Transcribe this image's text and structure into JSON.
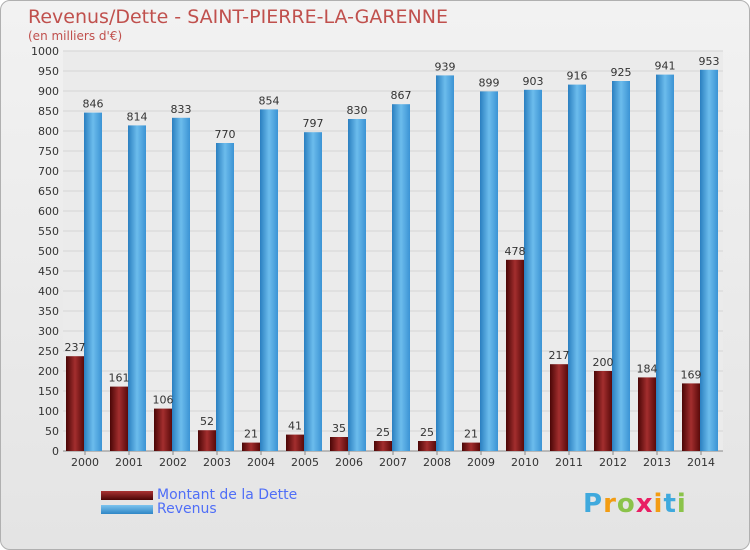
{
  "header": {
    "title": "Revenus/Dette - SAINT-PIERRE-LA-GARENNE",
    "subtitle": "(en milliers d'€)"
  },
  "chart_data": {
    "type": "bar",
    "title": "Revenus/Dette - SAINT-PIERRE-LA-GARENNE",
    "ylabel": "(en milliers d'€)",
    "xlabel": "",
    "ylim": [
      0,
      1000
    ],
    "ytick_step": 50,
    "grid": true,
    "legend_position": "bottom-left",
    "categories": [
      "2000",
      "2001",
      "2002",
      "2003",
      "2004",
      "2005",
      "2006",
      "2007",
      "2008",
      "2009",
      "2010",
      "2011",
      "2012",
      "2013",
      "2014"
    ],
    "series": [
      {
        "name": "Montant de la Dette",
        "color": "#7a1212",
        "values": [
          237,
          161,
          106,
          52,
          21,
          41,
          35,
          25,
          25,
          21,
          478,
          217,
          200,
          184,
          169
        ]
      },
      {
        "name": "Revenus",
        "color": "#4aa3df",
        "values": [
          846,
          814,
          833,
          770,
          854,
          797,
          830,
          867,
          939,
          899,
          903,
          916,
          925,
          941,
          953
        ]
      }
    ]
  },
  "legend": [
    {
      "label": "Montant de la Dette",
      "color": "#6b1010"
    },
    {
      "label": "Revenus",
      "color": "#4aa3df"
    }
  ],
  "logo": {
    "text": "Proxiti",
    "letter_colors": [
      "#3fa9dd",
      "#f39c12",
      "#8bc34a",
      "#e91e63",
      "#f39c12",
      "#3fa9dd",
      "#8bc34a"
    ]
  }
}
